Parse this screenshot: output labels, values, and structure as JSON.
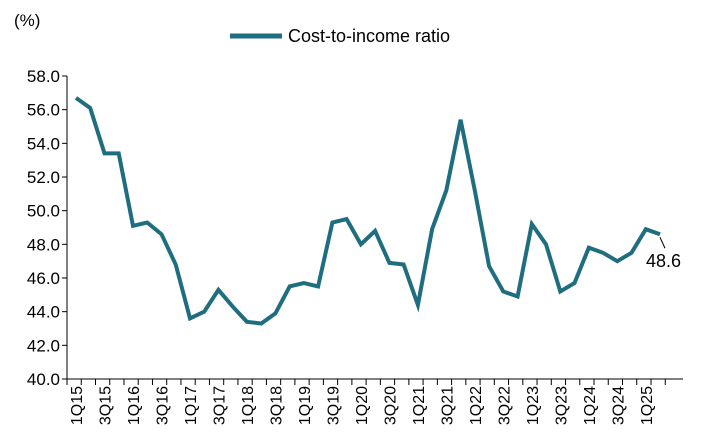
{
  "chart_data": {
    "type": "line",
    "unit_label": "(%)",
    "series": [
      {
        "name": "Cost-to-income ratio",
        "color": "#1F6E80",
        "values": [
          56.7,
          56.1,
          53.4,
          53.4,
          49.1,
          49.3,
          48.6,
          46.8,
          43.6,
          44.0,
          45.3,
          44.3,
          43.4,
          43.3,
          43.9,
          45.5,
          45.7,
          45.5,
          49.3,
          49.5,
          48.0,
          48.8,
          46.9,
          46.8,
          44.4,
          48.9,
          51.2,
          55.4,
          51.2,
          46.7,
          45.2,
          44.9,
          49.2,
          48.0,
          45.2,
          45.7,
          47.8,
          47.5,
          47.0,
          47.5,
          48.9,
          48.6
        ]
      }
    ],
    "categories": [
      "1Q15",
      "2Q15",
      "3Q15",
      "4Q15",
      "1Q16",
      "2Q16",
      "3Q16",
      "4Q16",
      "1Q17",
      "2Q17",
      "3Q17",
      "4Q17",
      "1Q18",
      "2Q18",
      "3Q18",
      "4Q18",
      "1Q19",
      "2Q19",
      "3Q19",
      "4Q19",
      "1Q20",
      "2Q20",
      "3Q20",
      "4Q20",
      "1Q21",
      "2Q21",
      "3Q21",
      "4Q21",
      "1Q22",
      "2Q22",
      "3Q22",
      "4Q22",
      "1Q23",
      "2Q23",
      "3Q23",
      "4Q23",
      "1Q24",
      "2Q24",
      "3Q24",
      "4Q24",
      "1Q25",
      "2Q25"
    ],
    "tick_labels": [
      "1Q15",
      "3Q15",
      "1Q16",
      "3Q16",
      "1Q17",
      "3Q17",
      "1Q18",
      "3Q18",
      "1Q19",
      "3Q19",
      "1Q20",
      "3Q20",
      "1Q21",
      "3Q21",
      "1Q22",
      "3Q22",
      "1Q23",
      "3Q23",
      "1Q24",
      "3Q24",
      "1Q25"
    ],
    "y_ticks": [
      "40.0",
      "42.0",
      "44.0",
      "46.0",
      "48.0",
      "50.0",
      "52.0",
      "54.0",
      "56.0",
      "58.0"
    ],
    "ylim": [
      40,
      58
    ],
    "end_label": "48.6",
    "grid": false,
    "legend_position": "top"
  }
}
